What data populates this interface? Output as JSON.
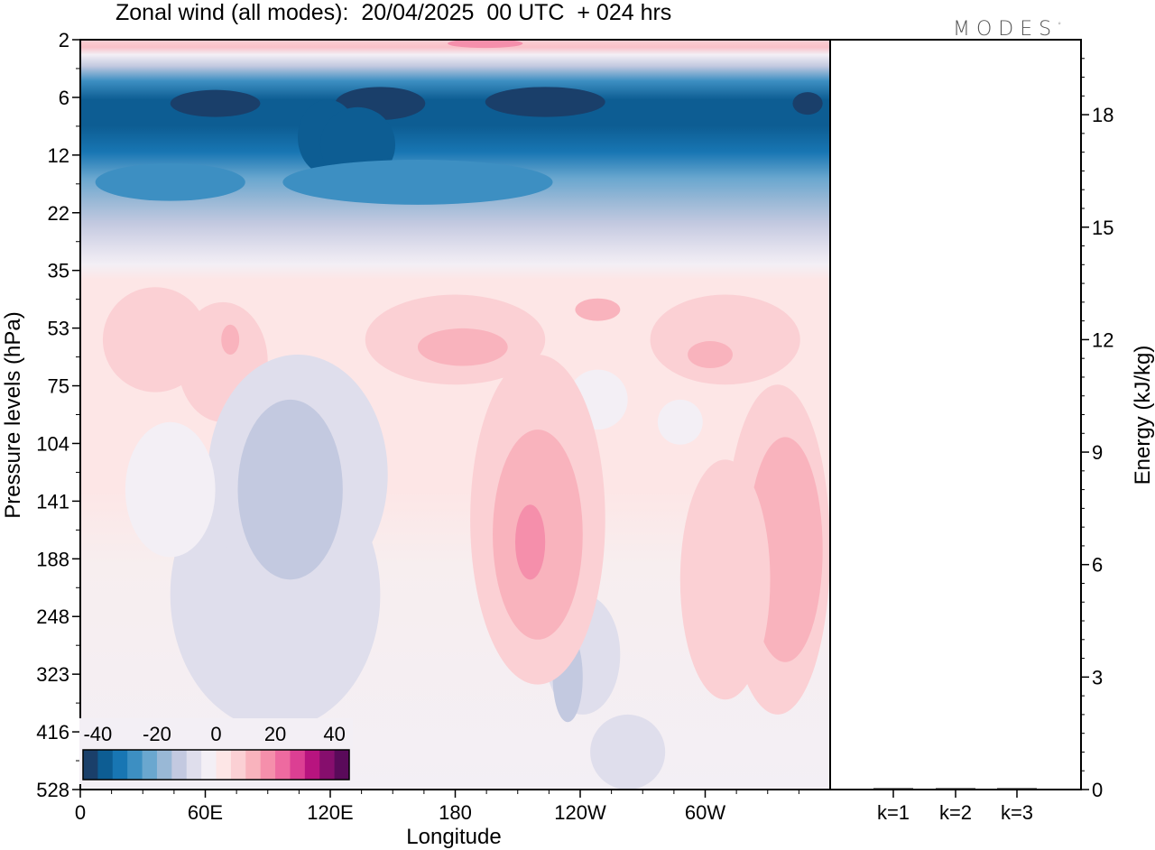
{
  "title": "Zonal wind (all modes):  20/04/2025  00 UTC  + 024 hrs",
  "brand": "MODES",
  "brand_mark": "°",
  "colors": {
    "level_colors": [
      "#1a3f6a",
      "#0d5d93",
      "#1876b3",
      "#3d8fc2",
      "#6aa7cf",
      "#99b8d6",
      "#c3c9e0",
      "#dfdeec",
      "#f3eff5",
      "#fde6e6",
      "#fbd0d4",
      "#f9b3bd",
      "#f58fab",
      "#ee6aa0",
      "#dc3f93",
      "#b8147f",
      "#860e6d",
      "#5a0a5a"
    ]
  },
  "chart_data": [
    {
      "type": "heatmap",
      "title": "Zonal wind (all modes):  20/04/2025  00 UTC  + 024 hrs",
      "xlabel": "Longitude",
      "ylabel": "Pressure levels (hPa)",
      "x_ticks": [
        "0",
        "60E",
        "120E",
        "180",
        "120W",
        "60W"
      ],
      "y_ticks": [
        "2",
        "6",
        "12",
        "22",
        "35",
        "53",
        "75",
        "104",
        "141",
        "188",
        "248",
        "323",
        "416",
        "528"
      ],
      "ylim": [
        2,
        528
      ],
      "colorbar": {
        "tick_labels": [
          "-40",
          "-20",
          "0",
          "20",
          "40"
        ],
        "levels": [
          -45,
          -40,
          -35,
          -30,
          -25,
          -20,
          -15,
          -10,
          -5,
          0,
          5,
          10,
          15,
          20,
          25,
          30,
          35,
          40,
          45
        ]
      },
      "approx_zonal_mean_by_level": [
        {
          "level": "2",
          "value": 5
        },
        {
          "level": "6",
          "value": -37
        },
        {
          "level": "12",
          "value": -30
        },
        {
          "level": "22",
          "value": -12
        },
        {
          "level": "35",
          "value": 2
        },
        {
          "level": "53",
          "value": 5
        },
        {
          "level": "75",
          "value": 3
        },
        {
          "level": "104",
          "value": 1
        },
        {
          "level": "141",
          "value": 1
        },
        {
          "level": "188",
          "value": 1
        },
        {
          "level": "248",
          "value": 1
        },
        {
          "level": "323",
          "value": 0
        },
        {
          "level": "416",
          "value": 0
        },
        {
          "level": "528",
          "value": 0
        }
      ]
    },
    {
      "type": "bar",
      "categories": [
        "k=1",
        "k=2",
        "k=3"
      ],
      "values": [
        0.03,
        0.02,
        0.01
      ],
      "ylabel": "Energy (kJ/kg)",
      "y_ticks": [
        "0",
        "3",
        "6",
        "9",
        "12",
        "15",
        "18"
      ],
      "ylim": [
        0,
        20
      ]
    }
  ]
}
